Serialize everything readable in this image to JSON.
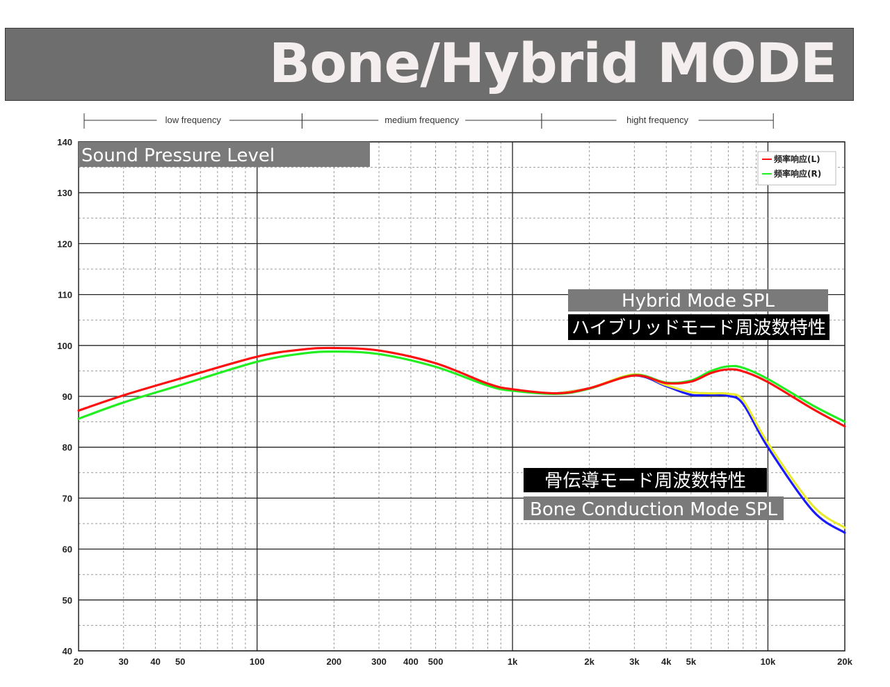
{
  "header": {
    "title": "Bone/Hybrid MODE"
  },
  "bands": [
    {
      "label": "low frequency",
      "from": 20,
      "to": 150
    },
    {
      "label": "medium frequency",
      "from": 150,
      "to": 1300
    },
    {
      "label": "hight frequency",
      "from": 1300,
      "to": 10500
    }
  ],
  "annotations": {
    "spl": "Sound Pressure Level",
    "hybrid_en": "Hybrid Mode SPL",
    "hybrid_jp": "ハイブリッドモード周波数特性",
    "bone_jp": "骨伝導モード周波数特性",
    "bone_en": "Bone Conduction Mode SPL"
  },
  "chart_data": {
    "type": "line",
    "x_scale": "log",
    "xlim": [
      20,
      20000
    ],
    "ylim": [
      40,
      140
    ],
    "grid": true,
    "legend_position": "top-right",
    "x_ticks": [
      {
        "v": 20,
        "label": "20"
      },
      {
        "v": 30,
        "label": "30"
      },
      {
        "v": 40,
        "label": "40"
      },
      {
        "v": 50,
        "label": "50"
      },
      {
        "v": 100,
        "label": "100"
      },
      {
        "v": 200,
        "label": "200"
      },
      {
        "v": 300,
        "label": "300"
      },
      {
        "v": 400,
        "label": "400"
      },
      {
        "v": 500,
        "label": "500"
      },
      {
        "v": 1000,
        "label": "1k"
      },
      {
        "v": 2000,
        "label": "2k"
      },
      {
        "v": 3000,
        "label": "3k"
      },
      {
        "v": 4000,
        "label": "4k"
      },
      {
        "v": 5000,
        "label": "5k"
      },
      {
        "v": 10000,
        "label": "10k"
      },
      {
        "v": 20000,
        "label": "20k"
      }
    ],
    "y_ticks": [
      40,
      50,
      60,
      70,
      80,
      90,
      100,
      110,
      120,
      130,
      140
    ],
    "x": [
      20,
      30,
      50,
      100,
      150,
      200,
      300,
      500,
      800,
      1000,
      1500,
      2000,
      3000,
      4000,
      5000,
      6000,
      7000,
      8000,
      10000,
      15000,
      20000
    ],
    "series": [
      {
        "name": "频率响应(L)",
        "color": "#ff1010",
        "legend": true,
        "values": [
          87.2,
          90.2,
          93.5,
          97.8,
          99.2,
          99.5,
          99.0,
          96.5,
          92.5,
          91.4,
          90.6,
          91.6,
          94.1,
          92.6,
          92.9,
          94.6,
          95.3,
          94.9,
          92.8,
          87.5,
          84.1
        ]
      },
      {
        "name": "频率响应(R)",
        "color": "#22ee22",
        "legend": true,
        "values": [
          85.6,
          88.8,
          92.2,
          96.8,
          98.4,
          98.8,
          98.3,
          95.8,
          92.1,
          91.1,
          90.5,
          91.5,
          94.2,
          92.7,
          93.1,
          95.0,
          95.9,
          95.6,
          93.4,
          88.2,
          85.0
        ]
      },
      {
        "name": "",
        "color": "#1a1aff",
        "legend": false,
        "values": [
          null,
          null,
          null,
          null,
          null,
          null,
          null,
          null,
          null,
          null,
          90.6,
          91.6,
          94.1,
          92.0,
          90.3,
          90.3,
          90.1,
          88.5,
          80.0,
          67.5,
          63.2
        ]
      },
      {
        "name": "",
        "color": "#eaea30",
        "legend": false,
        "values": [
          null,
          null,
          null,
          null,
          null,
          null,
          null,
          null,
          null,
          null,
          90.6,
          91.6,
          94.3,
          92.2,
          90.8,
          90.6,
          90.5,
          89.2,
          80.8,
          68.5,
          64.2
        ]
      }
    ]
  }
}
